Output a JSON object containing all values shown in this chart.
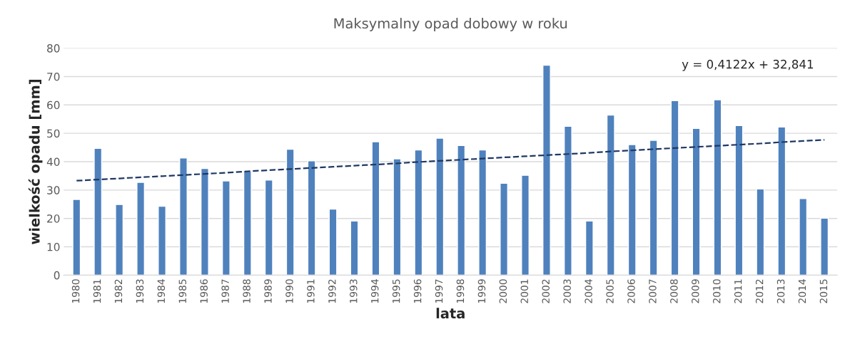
{
  "chart_data": {
    "type": "bar",
    "title": "Maksymalny opad dobowy w roku",
    "xlabel": "lata",
    "ylabel": "wielkość opadu [mm]",
    "categories": [
      "1980",
      "1981",
      "1982",
      "1983",
      "1984",
      "1985",
      "1986",
      "1987",
      "1988",
      "1989",
      "1990",
      "1991",
      "1992",
      "1993",
      "1994",
      "1995",
      "1996",
      "1997",
      "1998",
      "1999",
      "2000",
      "2001",
      "2002",
      "2003",
      "2004",
      "2005",
      "2006",
      "2007",
      "2008",
      "2009",
      "2010",
      "2011",
      "2012",
      "2013",
      "2014",
      "2015"
    ],
    "series": [
      {
        "color": "#4f81bd",
        "values": [
          26.7,
          44.7,
          24.9,
          32.7,
          24.3,
          41.3,
          37.6,
          33.2,
          36.6,
          33.5,
          44.4,
          40.3,
          23.3,
          19.1,
          47.0,
          41.0,
          44.1,
          48.3,
          45.7,
          44.1,
          32.4,
          35.2,
          74.0,
          52.5,
          19.1,
          56.4,
          46.0,
          47.5,
          61.5,
          51.7,
          61.8,
          52.7,
          30.4,
          52.2,
          27.0,
          20.1
        ]
      },
      {
        "type": "line",
        "color": "#1f3864",
        "line_style": "dashed",
        "values": [
          33.3,
          33.7,
          34.1,
          34.5,
          34.9,
          35.3,
          35.7,
          36.1,
          36.6,
          37.0,
          37.4,
          37.8,
          38.2,
          38.6,
          39.0,
          39.4,
          39.9,
          40.3,
          40.7,
          41.1,
          41.5,
          41.9,
          42.3,
          42.7,
          43.1,
          43.6,
          44.0,
          44.4,
          44.8,
          45.2,
          45.6,
          46.0,
          46.4,
          46.9,
          47.3,
          47.7
        ]
      }
    ],
    "annotations": [
      "y = 0,4122x + 32,841"
    ],
    "ylim": [
      0,
      80
    ],
    "yticks": [
      0,
      10,
      20,
      30,
      40,
      50,
      60,
      70,
      80
    ],
    "grid": "y",
    "legend": false
  }
}
